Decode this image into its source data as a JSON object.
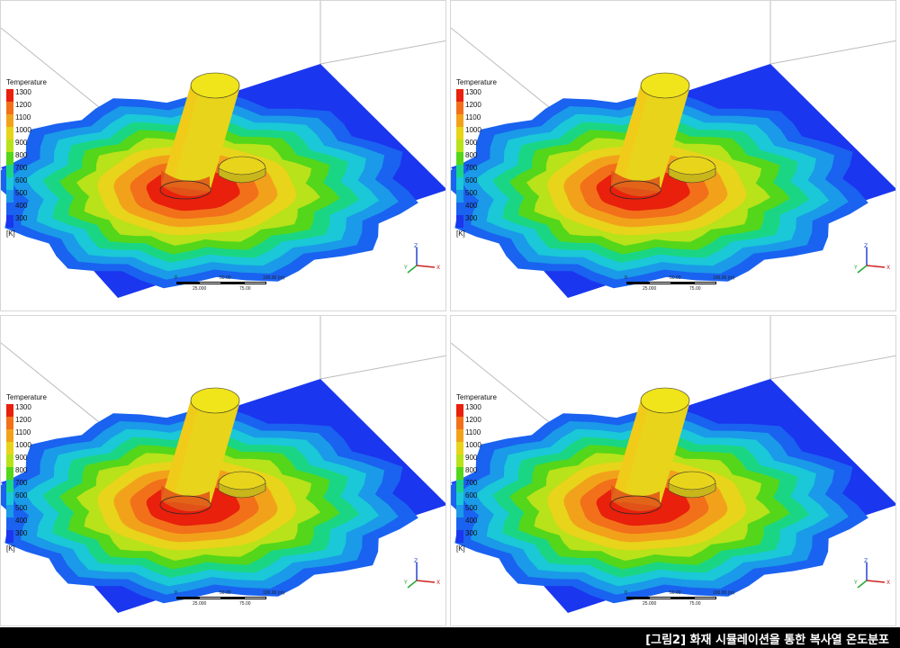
{
  "legend": {
    "title": "Temperature",
    "ticks": [
      "1300",
      "1200",
      "1100",
      "1000",
      "900",
      "800",
      "700",
      "600",
      "500",
      "400",
      "300"
    ],
    "unit": "[K]",
    "colors": [
      "#e8200c",
      "#f2701a",
      "#f2a21a",
      "#e8d41a",
      "#b8e21a",
      "#54d61a",
      "#1ad684",
      "#1ac8d8",
      "#1a9ae8",
      "#1a62f0",
      "#1a36ee"
    ]
  },
  "scalebar": {
    "labels_top": [
      "0",
      "50.00",
      "100.00 (m)"
    ],
    "labels_bottom": [
      "25.000",
      "75.00"
    ]
  },
  "triad": {
    "x": "X",
    "y": "Y",
    "z": "Z"
  },
  "panels": [
    {
      "id": "top-left"
    },
    {
      "id": "top-right"
    },
    {
      "id": "bottom-left"
    },
    {
      "id": "bottom-right"
    }
  ],
  "caption": "[그림2] 화재 시뮬레이션을 통한 복사열 온도분포"
}
